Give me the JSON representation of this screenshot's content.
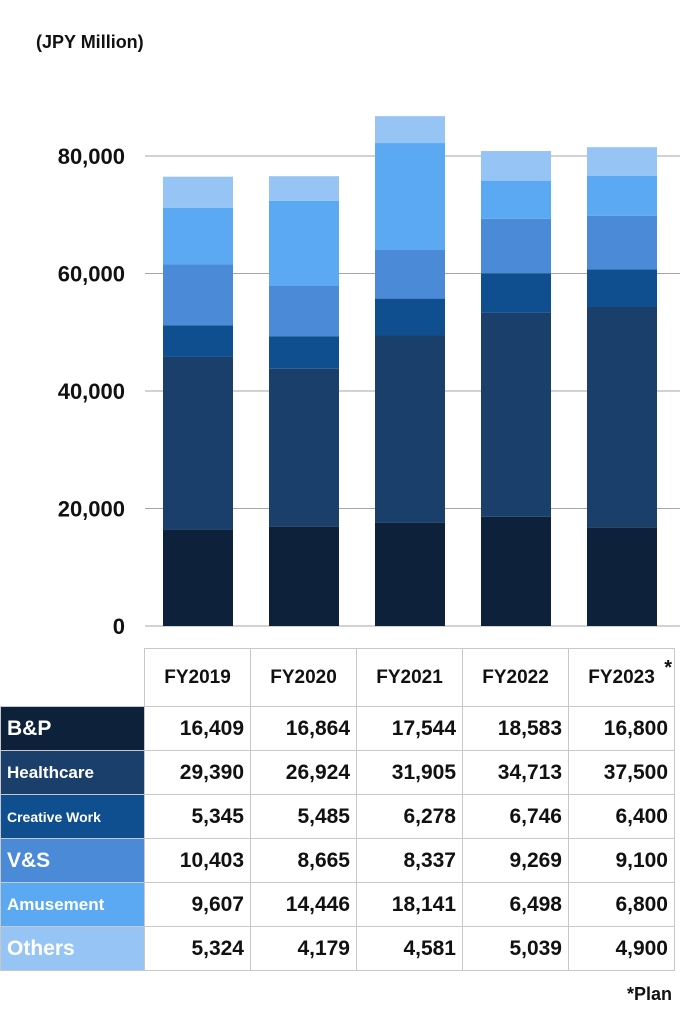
{
  "unit_label": "(JPY Million)",
  "footnote": "*Plan",
  "colors": {
    "B&P": "#0d213a",
    "Healthcare": "#1a3f6b",
    "Creative Work": "#0f4f90",
    "V&S": "#4a8ad6",
    "Amusement": "#5aa9f2",
    "Others": "#96c5f5"
  },
  "chart_data": {
    "type": "bar",
    "stacked": true,
    "categories": [
      "FY2019",
      "FY2020",
      "FY2021",
      "FY2022",
      "FY2023"
    ],
    "category_marks": [
      "",
      "",
      "",
      "",
      "*"
    ],
    "ylim": [
      0,
      80000
    ],
    "yticks": [
      0,
      20000,
      40000,
      60000,
      80000
    ],
    "ytick_labels": [
      "0",
      "20,000",
      "40,000",
      "60,000",
      "80,000"
    ],
    "grid": true,
    "series": [
      {
        "name": "B&P",
        "values": [
          16409,
          16864,
          17544,
          18583,
          16800
        ],
        "labels": [
          "16,409",
          "16,864",
          "17,544",
          "18,583",
          "16,800"
        ]
      },
      {
        "name": "Healthcare",
        "values": [
          29390,
          26924,
          31905,
          34713,
          37500
        ],
        "labels": [
          "29,390",
          "26,924",
          "31,905",
          "34,713",
          "37,500"
        ]
      },
      {
        "name": "Creative Work",
        "values": [
          5345,
          5485,
          6278,
          6746,
          6400
        ],
        "labels": [
          "5,345",
          "5,485",
          "6,278",
          "6,746",
          "6,400"
        ]
      },
      {
        "name": "V&S",
        "values": [
          10403,
          8665,
          8337,
          9269,
          9100
        ],
        "labels": [
          "10,403",
          "8,665",
          "8,337",
          "9,269",
          "9,100"
        ]
      },
      {
        "name": "Amusement",
        "values": [
          9607,
          14446,
          18141,
          6498,
          6800
        ],
        "labels": [
          "9,607",
          "14,446",
          "18,141",
          "6,498",
          "6,800"
        ]
      },
      {
        "name": "Others",
        "values": [
          5324,
          4179,
          4581,
          5039,
          4900
        ],
        "labels": [
          "5,324",
          "4,179",
          "4,581",
          "5,039",
          "4,900"
        ]
      }
    ]
  }
}
